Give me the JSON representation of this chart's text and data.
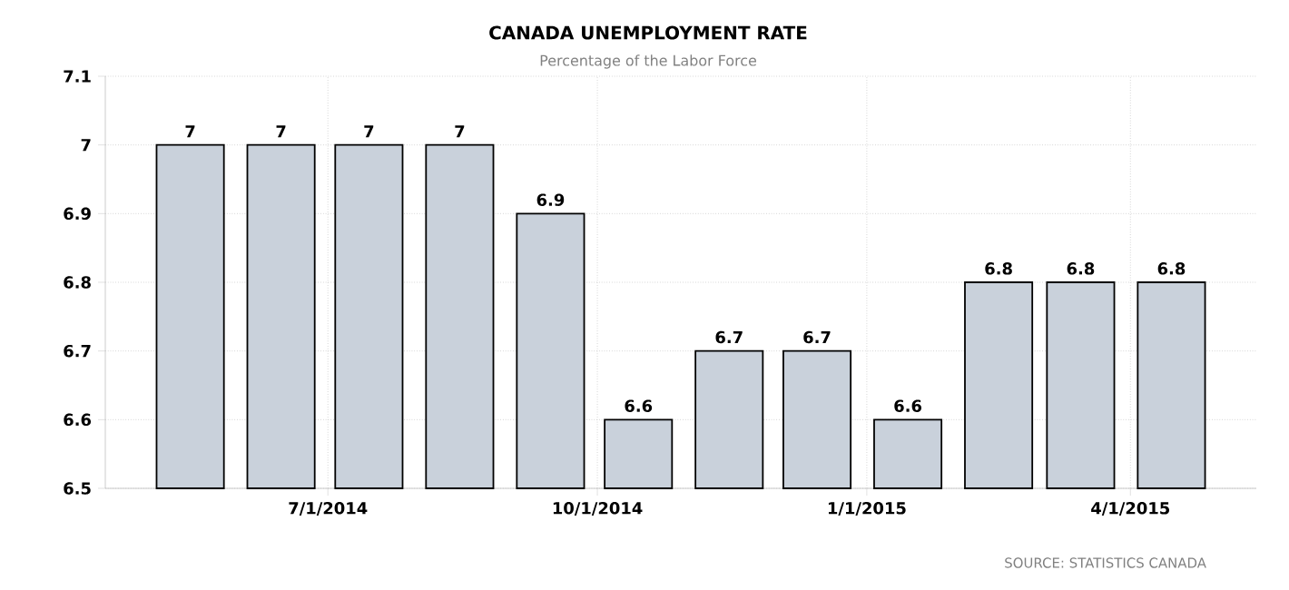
{
  "chart_data": {
    "type": "bar",
    "title": "CANADA UNEMPLOYMENT RATE",
    "subtitle": "Percentage of the Labor Force",
    "x": [
      "2014-05-15",
      "2014-06-15",
      "2014-07-15",
      "2014-08-15",
      "2014-09-15",
      "2014-10-15",
      "2014-11-15",
      "2014-12-15",
      "2015-01-15",
      "2015-02-15",
      "2015-03-15",
      "2015-04-15"
    ],
    "values": [
      7,
      7,
      7,
      7,
      6.9,
      6.6,
      6.7,
      6.7,
      6.6,
      6.8,
      6.8,
      6.8
    ],
    "color": "#c9d1db",
    "xlim": [
      "2014-04-16",
      "2015-05-14"
    ],
    "xticks": [
      {
        "value": "2014-07-01",
        "label": "7/1/2014"
      },
      {
        "value": "2014-10-01",
        "label": "10/1/2014"
      },
      {
        "value": "2015-01-01",
        "label": "1/1/2015"
      },
      {
        "value": "2015-04-01",
        "label": "4/1/2015"
      }
    ],
    "ylim": [
      6.5,
      7.1
    ],
    "yticks": [
      6.5,
      6.6,
      6.7,
      6.8,
      6.9,
      7,
      7.1
    ],
    "grid": true,
    "data_labels": true,
    "annotations": [
      "SOURCE: STATISTICS CANADA"
    ]
  }
}
